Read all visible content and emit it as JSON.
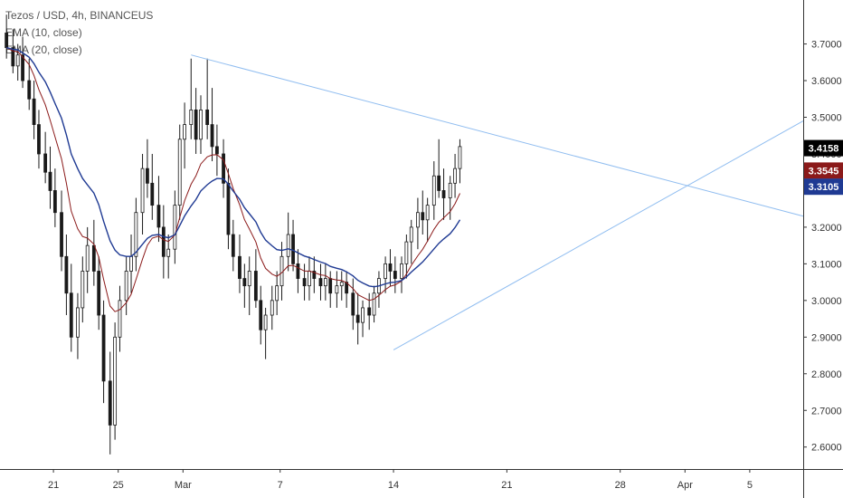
{
  "legend": {
    "symbol": "Tezos / USD, 4h, BINANCEUS",
    "ema_fast": "EMA (10, close)",
    "ema_slow": "EMA (20, close)"
  },
  "colors": {
    "candle": "#1a1a1a",
    "ema_fast": "#8b1a1a",
    "ema_slow": "#1f3a93",
    "trendline": "#90bdf0",
    "axis": "#333333",
    "badge_price": "#000000",
    "badge_fast": "#8b1a1a",
    "badge_slow": "#1f3a93"
  },
  "chart_data": {
    "type": "candlestick",
    "y_axis": {
      "ticks": [
        "3.7000",
        "3.6000",
        "3.5000",
        "3.4000",
        "3.3000",
        "3.2000",
        "3.1000",
        "3.0000",
        "2.9000",
        "2.8000",
        "2.7000",
        "2.6000"
      ],
      "tick_values": [
        3.7,
        3.6,
        3.5,
        3.4,
        3.3,
        3.2,
        3.1,
        3.0,
        2.9,
        2.8,
        2.7,
        2.6
      ],
      "ylim": [
        2.54,
        3.82
      ]
    },
    "x_axis": {
      "ticks": [
        "21",
        "25",
        "Mar",
        "7",
        "14",
        "21",
        "28",
        "Apr",
        "5"
      ],
      "tick_days": [
        0,
        4,
        8,
        14,
        21,
        28,
        35,
        39,
        43
      ],
      "xlim": [
        -3.3,
        46.3
      ]
    },
    "price_badges": [
      {
        "label": "3.4158",
        "value": 3.4158,
        "kind": "price"
      },
      {
        "label": "3.3545",
        "value": 3.3545,
        "kind": "fast"
      },
      {
        "label": "3.3105",
        "value": 3.3105,
        "kind": "slow"
      }
    ],
    "trendlines": [
      {
        "name": "",
        "from": [
          8.5,
          3.67
        ],
        "to": [
          46.3,
          3.23
        ]
      },
      {
        "name": "",
        "from": [
          21.0,
          2.865
        ],
        "to": [
          46.3,
          3.49
        ]
      }
    ],
    "candles": [
      [
        -2.9,
        3.73,
        3.78,
        3.66,
        3.69
      ],
      [
        -2.5,
        3.69,
        3.74,
        3.62,
        3.64
      ],
      [
        -2.2,
        3.64,
        3.7,
        3.6,
        3.67
      ],
      [
        -1.9,
        3.67,
        3.72,
        3.58,
        3.6
      ],
      [
        -1.5,
        3.6,
        3.66,
        3.52,
        3.55
      ],
      [
        -1.2,
        3.55,
        3.6,
        3.44,
        3.48
      ],
      [
        -0.9,
        3.48,
        3.52,
        3.36,
        3.4
      ],
      [
        -0.5,
        3.4,
        3.46,
        3.32,
        3.35
      ],
      [
        -0.2,
        3.35,
        3.42,
        3.25,
        3.3
      ],
      [
        0.1,
        3.3,
        3.36,
        3.2,
        3.24
      ],
      [
        0.5,
        3.24,
        3.3,
        3.08,
        3.12
      ],
      [
        0.8,
        3.12,
        3.18,
        2.96,
        3.02
      ],
      [
        1.1,
        3.02,
        3.1,
        2.86,
        2.9
      ],
      [
        1.5,
        2.9,
        3.02,
        2.84,
        2.98
      ],
      [
        1.8,
        2.98,
        3.12,
        2.94,
        3.08
      ],
      [
        2.1,
        3.08,
        3.2,
        3.02,
        3.15
      ],
      [
        2.5,
        3.15,
        3.22,
        3.04,
        3.08
      ],
      [
        2.8,
        3.08,
        3.12,
        2.92,
        2.96
      ],
      [
        3.1,
        2.96,
        3.0,
        2.72,
        2.78
      ],
      [
        3.5,
        2.78,
        2.86,
        2.58,
        2.66
      ],
      [
        3.8,
        2.66,
        2.94,
        2.62,
        2.9
      ],
      [
        4.1,
        2.9,
        3.04,
        2.86,
        3.0
      ],
      [
        4.5,
        3.0,
        3.12,
        2.96,
        3.08
      ],
      [
        4.8,
        3.08,
        3.18,
        3.02,
        3.12
      ],
      [
        5.1,
        3.12,
        3.28,
        3.08,
        3.24
      ],
      [
        5.5,
        3.24,
        3.4,
        3.18,
        3.36
      ],
      [
        5.8,
        3.36,
        3.44,
        3.28,
        3.32
      ],
      [
        6.1,
        3.32,
        3.4,
        3.22,
        3.26
      ],
      [
        6.5,
        3.26,
        3.34,
        3.16,
        3.2
      ],
      [
        6.8,
        3.2,
        3.26,
        3.06,
        3.12
      ],
      [
        7.1,
        3.12,
        3.18,
        3.06,
        3.14
      ],
      [
        7.5,
        3.14,
        3.3,
        3.1,
        3.26
      ],
      [
        7.8,
        3.26,
        3.48,
        3.22,
        3.44
      ],
      [
        8.1,
        3.44,
        3.54,
        3.36,
        3.48
      ],
      [
        8.5,
        3.48,
        3.66,
        3.44,
        3.52
      ],
      [
        8.8,
        3.52,
        3.58,
        3.4,
        3.44
      ],
      [
        9.1,
        3.44,
        3.56,
        3.4,
        3.52
      ],
      [
        9.5,
        3.52,
        3.66,
        3.44,
        3.48
      ],
      [
        9.8,
        3.48,
        3.58,
        3.38,
        3.42
      ],
      [
        10.1,
        3.42,
        3.48,
        3.34,
        3.4
      ],
      [
        10.5,
        3.4,
        3.44,
        3.28,
        3.32
      ],
      [
        10.8,
        3.32,
        3.36,
        3.14,
        3.18
      ],
      [
        11.1,
        3.18,
        3.22,
        3.08,
        3.12
      ],
      [
        11.5,
        3.12,
        3.18,
        3.02,
        3.06
      ],
      [
        11.8,
        3.06,
        3.1,
        2.98,
        3.04
      ],
      [
        12.1,
        3.04,
        3.12,
        2.96,
        3.08
      ],
      [
        12.5,
        3.08,
        3.14,
        2.98,
        3.0
      ],
      [
        12.8,
        3.0,
        3.04,
        2.88,
        2.92
      ],
      [
        13.1,
        2.92,
        2.98,
        2.84,
        2.96
      ],
      [
        13.5,
        2.96,
        3.04,
        2.92,
        3.0
      ],
      [
        13.8,
        3.0,
        3.08,
        2.96,
        3.04
      ],
      [
        14.1,
        3.04,
        3.16,
        3.0,
        3.12
      ],
      [
        14.5,
        3.12,
        3.24,
        3.08,
        3.18
      ],
      [
        14.8,
        3.18,
        3.22,
        3.08,
        3.1
      ],
      [
        15.1,
        3.1,
        3.14,
        3.02,
        3.06
      ],
      [
        15.5,
        3.06,
        3.1,
        3.0,
        3.04
      ],
      [
        15.8,
        3.04,
        3.12,
        3.0,
        3.08
      ],
      [
        16.1,
        3.08,
        3.12,
        3.02,
        3.06
      ],
      [
        16.5,
        3.06,
        3.1,
        3.0,
        3.04
      ],
      [
        16.8,
        3.04,
        3.1,
        3.0,
        3.06
      ],
      [
        17.1,
        3.06,
        3.08,
        2.98,
        3.02
      ],
      [
        17.5,
        3.02,
        3.08,
        2.98,
        3.04
      ],
      [
        17.8,
        3.04,
        3.08,
        3.0,
        3.05
      ],
      [
        18.1,
        3.05,
        3.08,
        2.98,
        3.02
      ],
      [
        18.5,
        3.02,
        3.06,
        2.92,
        2.96
      ],
      [
        18.8,
        2.96,
        3.02,
        2.88,
        2.94
      ],
      [
        19.1,
        2.94,
        3.0,
        2.9,
        2.98
      ],
      [
        19.5,
        2.98,
        3.02,
        2.92,
        2.96
      ],
      [
        19.8,
        2.96,
        3.04,
        2.94,
        3.02
      ],
      [
        20.1,
        3.02,
        3.08,
        2.98,
        3.06
      ],
      [
        20.5,
        3.06,
        3.12,
        3.02,
        3.1
      ],
      [
        20.8,
        3.1,
        3.14,
        3.04,
        3.08
      ],
      [
        21.1,
        3.08,
        3.12,
        3.02,
        3.06
      ],
      [
        21.5,
        3.06,
        3.12,
        3.02,
        3.1
      ],
      [
        21.8,
        3.1,
        3.18,
        3.06,
        3.16
      ],
      [
        22.1,
        3.16,
        3.22,
        3.1,
        3.2
      ],
      [
        22.5,
        3.2,
        3.28,
        3.14,
        3.24
      ],
      [
        22.8,
        3.24,
        3.3,
        3.18,
        3.22
      ],
      [
        23.1,
        3.22,
        3.28,
        3.16,
        3.26
      ],
      [
        23.5,
        3.26,
        3.38,
        3.22,
        3.34
      ],
      [
        23.8,
        3.34,
        3.44,
        3.28,
        3.3
      ],
      [
        24.1,
        3.3,
        3.36,
        3.22,
        3.28
      ],
      [
        24.5,
        3.28,
        3.34,
        3.22,
        3.32
      ],
      [
        24.8,
        3.32,
        3.4,
        3.28,
        3.36
      ],
      [
        25.1,
        3.36,
        3.44,
        3.32,
        3.42
      ]
    ]
  }
}
